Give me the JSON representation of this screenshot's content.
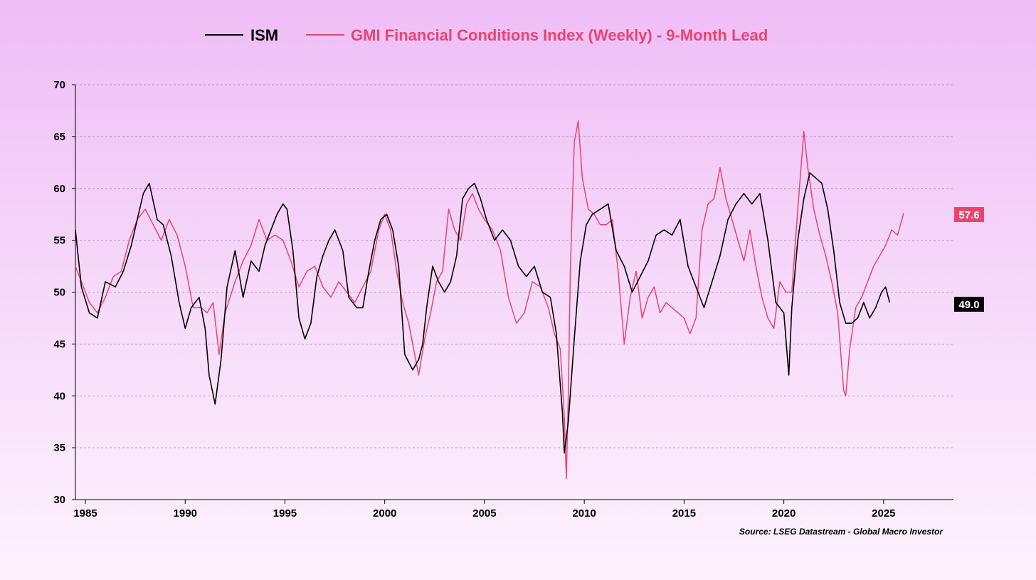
{
  "chart_data": {
    "type": "line",
    "title": "",
    "xlabel": "",
    "ylabel": "",
    "xlim": [
      1984.5,
      2028.5
    ],
    "ylim": [
      30,
      70
    ],
    "y_ticks": [
      30,
      35,
      40,
      45,
      50,
      55,
      60,
      65,
      70
    ],
    "x_ticks": [
      1985,
      1990,
      1995,
      2000,
      2005,
      2010,
      2015,
      2020,
      2025
    ],
    "x_tick_labels": [
      "1985",
      "1990",
      "1995",
      "2000",
      "2005",
      "2010",
      "2015",
      "2020",
      "2025"
    ],
    "grid": true,
    "legend_position": "top-center",
    "source": "Source: LSEG Datastream - Global Macro Investor",
    "series": [
      {
        "name": "ISM",
        "color": "#000000",
        "last_value_label": "49.0",
        "x": [
          1984.5,
          1984.8,
          1985.2,
          1985.6,
          1986.0,
          1986.5,
          1986.9,
          1987.3,
          1987.6,
          1987.9,
          1988.2,
          1988.6,
          1988.9,
          1989.3,
          1989.7,
          1990.0,
          1990.3,
          1990.7,
          1991.0,
          1991.2,
          1991.5,
          1991.8,
          1992.1,
          1992.5,
          1992.9,
          1993.3,
          1993.7,
          1994.0,
          1994.3,
          1994.6,
          1994.9,
          1995.1,
          1995.4,
          1995.7,
          1996.0,
          1996.3,
          1996.6,
          1996.9,
          1997.2,
          1997.5,
          1997.9,
          1998.2,
          1998.6,
          1998.9,
          1999.2,
          1999.5,
          1999.8,
          2000.1,
          2000.4,
          2000.7,
          2001.0,
          2001.4,
          2001.7,
          2001.9,
          2002.1,
          2002.4,
          2002.7,
          2003.0,
          2003.3,
          2003.6,
          2003.9,
          2004.2,
          2004.5,
          2004.8,
          2005.1,
          2005.5,
          2005.9,
          2006.3,
          2006.7,
          2007.1,
          2007.5,
          2007.9,
          2008.3,
          2008.6,
          2008.9,
          2009.0,
          2009.2,
          2009.5,
          2009.8,
          2010.1,
          2010.4,
          2010.8,
          2011.2,
          2011.6,
          2012.0,
          2012.4,
          2012.8,
          2013.2,
          2013.6,
          2014.0,
          2014.4,
          2014.8,
          2015.2,
          2015.6,
          2016.0,
          2016.4,
          2016.8,
          2017.2,
          2017.6,
          2018.0,
          2018.4,
          2018.8,
          2019.2,
          2019.6,
          2020.0,
          2020.25,
          2020.4,
          2020.7,
          2021.0,
          2021.3,
          2021.6,
          2021.9,
          2022.2,
          2022.5,
          2022.8,
          2023.1,
          2023.4,
          2023.7,
          2024.0,
          2024.3,
          2024.6,
          2024.9,
          2025.1,
          2025.3
        ],
        "values": [
          56.0,
          50.5,
          48.0,
          47.5,
          51.0,
          50.5,
          52.0,
          54.5,
          57.0,
          59.5,
          60.5,
          57.0,
          56.5,
          53.5,
          49.0,
          46.5,
          48.5,
          49.5,
          46.5,
          42.0,
          39.2,
          43.5,
          50.5,
          54.0,
          49.5,
          53.0,
          52.0,
          54.5,
          56.0,
          57.5,
          58.5,
          58.0,
          54.0,
          47.5,
          45.5,
          47.0,
          51.5,
          53.5,
          55.0,
          56.0,
          54.0,
          49.5,
          48.5,
          48.5,
          52.0,
          55.0,
          57.0,
          57.5,
          56.0,
          52.5,
          44.0,
          42.5,
          43.5,
          45.0,
          48.5,
          52.5,
          51.0,
          50.0,
          51.0,
          53.5,
          59.0,
          60.0,
          60.5,
          59.0,
          57.0,
          55.0,
          56.0,
          55.0,
          52.5,
          51.5,
          52.5,
          50.0,
          49.5,
          46.0,
          38.5,
          34.5,
          37.5,
          45.5,
          53.0,
          56.5,
          57.5,
          58.0,
          58.5,
          54.0,
          52.5,
          50.0,
          51.5,
          53.0,
          55.5,
          56.0,
          55.5,
          57.0,
          52.5,
          50.5,
          48.5,
          51.0,
          53.5,
          57.0,
          58.5,
          59.5,
          58.5,
          59.5,
          55.0,
          49.0,
          48.0,
          42.0,
          48.5,
          55.0,
          59.0,
          61.5,
          61.0,
          60.5,
          58.0,
          54.0,
          49.0,
          47.0,
          47.0,
          47.5,
          49.0,
          47.5,
          48.5,
          50.0,
          50.5,
          49.0
        ]
      },
      {
        "name": "GMI Financial Conditions Index (Weekly) - 9-Month Lead",
        "color": "#e8456e",
        "last_value_label": "57.6",
        "x": [
          1984.5,
          1984.8,
          1985.2,
          1985.6,
          1986.0,
          1986.4,
          1986.8,
          1987.2,
          1987.6,
          1988.0,
          1988.4,
          1988.8,
          1989.2,
          1989.6,
          1990.0,
          1990.4,
          1990.8,
          1991.1,
          1991.4,
          1991.7,
          1992.0,
          1992.5,
          1992.9,
          1993.3,
          1993.7,
          1994.1,
          1994.5,
          1994.9,
          1995.3,
          1995.7,
          1996.1,
          1996.5,
          1996.9,
          1997.3,
          1997.7,
          1998.1,
          1998.5,
          1998.9,
          1999.3,
          1999.7,
          2000.0,
          2000.3,
          2000.6,
          2000.9,
          2001.2,
          2001.5,
          2001.7,
          2002.0,
          2002.3,
          2002.6,
          2002.9,
          2003.2,
          2003.5,
          2003.8,
          2004.1,
          2004.4,
          2004.7,
          2005.0,
          2005.4,
          2005.8,
          2006.2,
          2006.6,
          2007.0,
          2007.4,
          2007.8,
          2008.2,
          2008.5,
          2008.8,
          2009.0,
          2009.1,
          2009.2,
          2009.3,
          2009.5,
          2009.7,
          2009.9,
          2010.2,
          2010.5,
          2010.8,
          2011.1,
          2011.4,
          2011.7,
          2012.0,
          2012.3,
          2012.6,
          2012.9,
          2013.2,
          2013.5,
          2013.8,
          2014.1,
          2014.4,
          2014.7,
          2015.0,
          2015.3,
          2015.6,
          2015.9,
          2016.2,
          2016.5,
          2016.8,
          2017.1,
          2017.4,
          2017.7,
          2018.0,
          2018.3,
          2018.6,
          2018.9,
          2019.2,
          2019.5,
          2019.8,
          2020.1,
          2020.4,
          2020.7,
          2021.0,
          2021.2,
          2021.5,
          2021.8,
          2022.1,
          2022.4,
          2022.7,
          2022.9,
          2023.0,
          2023.1,
          2023.3,
          2023.6,
          2023.9,
          2024.2,
          2024.5,
          2024.8,
          2025.1,
          2025.4,
          2025.7,
          2026.0
        ],
        "values": [
          52.5,
          51.0,
          49.0,
          48.0,
          49.5,
          51.5,
          52.0,
          55.0,
          57.0,
          58.0,
          56.5,
          55.0,
          57.0,
          55.5,
          52.5,
          48.5,
          48.5,
          48.0,
          49.0,
          44.0,
          48.0,
          51.0,
          53.0,
          54.5,
          57.0,
          55.0,
          55.5,
          55.0,
          53.0,
          50.5,
          52.0,
          52.5,
          50.5,
          49.5,
          51.0,
          50.0,
          49.0,
          50.5,
          52.0,
          56.0,
          57.5,
          56.0,
          52.0,
          49.0,
          47.0,
          44.0,
          42.0,
          45.5,
          48.0,
          51.0,
          52.0,
          58.0,
          56.0,
          55.0,
          58.5,
          59.5,
          58.0,
          57.0,
          56.0,
          54.0,
          49.5,
          47.0,
          48.0,
          51.0,
          50.5,
          48.5,
          46.0,
          44.5,
          38.0,
          32.0,
          40.0,
          52.0,
          64.5,
          66.5,
          61.0,
          58.0,
          57.5,
          56.5,
          56.5,
          57.0,
          52.0,
          45.0,
          49.5,
          52.0,
          47.5,
          49.5,
          50.5,
          48.0,
          49.0,
          48.5,
          48.0,
          47.5,
          46.0,
          47.5,
          56.0,
          58.5,
          59.0,
          62.0,
          59.0,
          57.0,
          55.0,
          53.0,
          56.0,
          52.5,
          49.5,
          47.5,
          46.5,
          51.0,
          50.0,
          50.0,
          58.0,
          65.5,
          62.0,
          58.0,
          55.5,
          53.5,
          51.0,
          48.0,
          43.0,
          40.5,
          40.0,
          44.5,
          48.5,
          49.5,
          51.0,
          52.5,
          53.5,
          54.5,
          56.0,
          55.5,
          57.6
        ]
      }
    ]
  },
  "legend": {
    "ism_label": "ISM",
    "gmi_label": "GMI Financial Conditions Index (Weekly) - 9-Month Lead"
  },
  "badges": {
    "gmi_value": "57.6",
    "ism_value": "49.0"
  },
  "source_text": "Source: LSEG Datastream - Global Macro Investor"
}
